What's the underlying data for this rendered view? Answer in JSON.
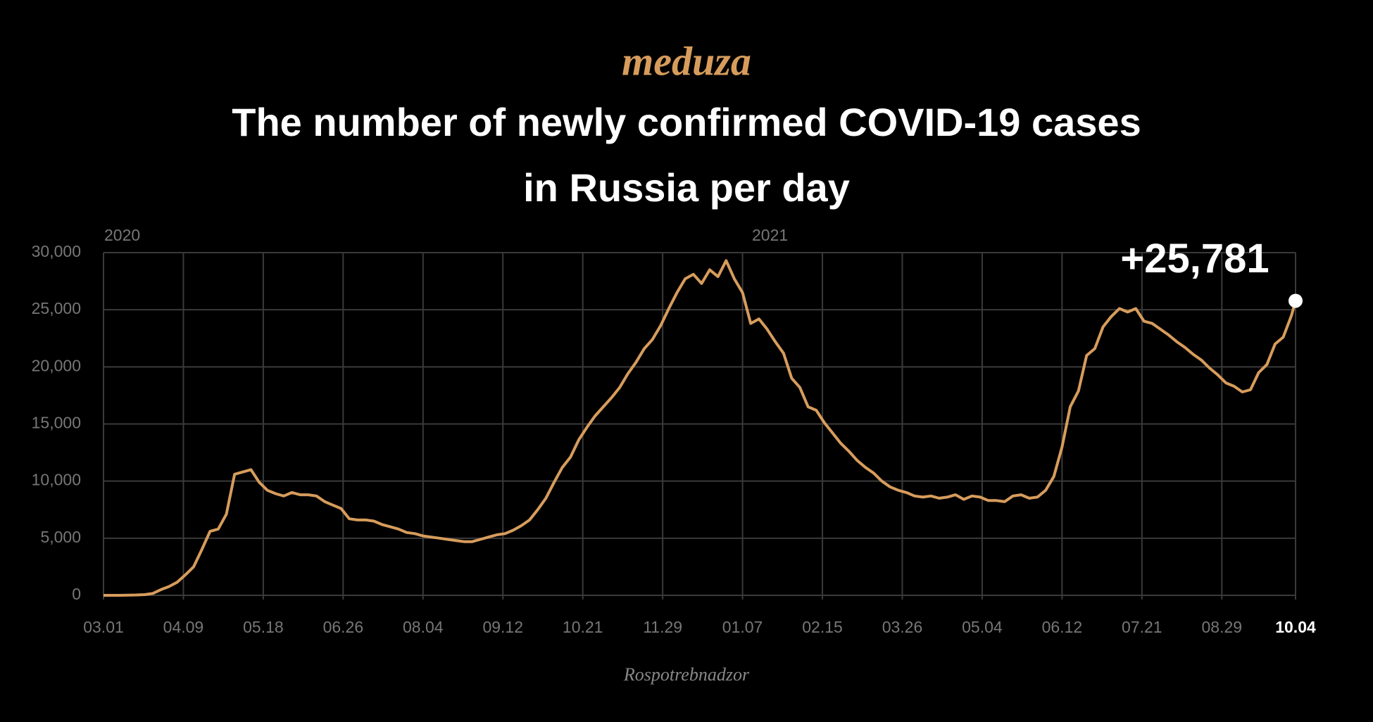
{
  "chart_data": {
    "type": "line",
    "logo": "meduza",
    "title": [
      "The number of newly confirmed COVID-19 cases",
      "in Russia per day"
    ],
    "year_labels": [
      "2020",
      "2021"
    ],
    "source": "Rospotrebnadzor",
    "highlight_label": "+25,781",
    "highlight_last_tick": true,
    "color": "#d79c5c",
    "grid": true,
    "xlim": [
      0,
      582
    ],
    "ylim": [
      0,
      30000
    ],
    "yticks": [
      0,
      {
        "value": 5000,
        "label": "5,000"
      },
      {
        "value": 10000,
        "label": "10,000"
      },
      {
        "value": 15000,
        "label": "15,000"
      },
      {
        "value": 20000,
        "label": "20,000"
      },
      {
        "value": 25000,
        "label": "25,000"
      },
      {
        "value": 30000,
        "label": "30,000"
      }
    ],
    "xticks": [
      {
        "value": 0,
        "label": "03.01"
      },
      {
        "value": 39,
        "label": "04.09"
      },
      {
        "value": 78,
        "label": "05.18"
      },
      {
        "value": 117,
        "label": "06.26"
      },
      {
        "value": 156,
        "label": "08.04"
      },
      {
        "value": 195,
        "label": "09.12"
      },
      {
        "value": 234,
        "label": "10.21"
      },
      {
        "value": 273,
        "label": "11.29"
      },
      {
        "value": 312,
        "label": "01.07"
      },
      {
        "value": 351,
        "label": "02.15"
      },
      {
        "value": 390,
        "label": "03.26"
      },
      {
        "value": 429,
        "label": "05.04"
      },
      {
        "value": 468,
        "label": "06.12"
      },
      {
        "value": 507,
        "label": "07.21"
      },
      {
        "value": 546,
        "label": "08.29"
      },
      {
        "value": 582,
        "label": "10.04"
      }
    ],
    "x": [
      0,
      4,
      8,
      12,
      16,
      20,
      24,
      28,
      32,
      36,
      40,
      44,
      48,
      52,
      56,
      60,
      64,
      68,
      72,
      76,
      80,
      84,
      88,
      92,
      96,
      100,
      104,
      108,
      112,
      116,
      120,
      124,
      128,
      132,
      136,
      140,
      144,
      148,
      152,
      156,
      160,
      164,
      168,
      172,
      176,
      180,
      184,
      188,
      192,
      196,
      200,
      204,
      208,
      212,
      216,
      220,
      224,
      228,
      232,
      236,
      240,
      244,
      248,
      252,
      256,
      260,
      264,
      268,
      272,
      276,
      280,
      284,
      288,
      292,
      296,
      300,
      304,
      308,
      312,
      316,
      320,
      324,
      328,
      332,
      336,
      340,
      344,
      348,
      352,
      356,
      360,
      364,
      368,
      372,
      376,
      380,
      384,
      388,
      392,
      396,
      400,
      404,
      408,
      412,
      416,
      420,
      424,
      428,
      432,
      436,
      440,
      444,
      448,
      452,
      456,
      460,
      464,
      468,
      472,
      476,
      480,
      484,
      488,
      492,
      496,
      500,
      504,
      508,
      512,
      516,
      520,
      524,
      528,
      532,
      536,
      540,
      544,
      548,
      552,
      556,
      560,
      564,
      568,
      572,
      576,
      580,
      582
    ],
    "values": [
      0,
      0,
      3,
      20,
      30,
      60,
      160,
      500,
      770,
      1150,
      1800,
      2500,
      4000,
      5600,
      5800,
      7100,
      10600,
      10800,
      11000,
      9900,
      9200,
      8900,
      8700,
      9000,
      8800,
      8800,
      8700,
      8200,
      7900,
      7600,
      6700,
      6600,
      6600,
      6500,
      6200,
      6000,
      5800,
      5500,
      5400,
      5200,
      5100,
      5000,
      4900,
      4800,
      4700,
      4700,
      4900,
      5100,
      5300,
      5400,
      5700,
      6100,
      6600,
      7500,
      8500,
      9900,
      11200,
      12100,
      13600,
      14700,
      15700,
      16500,
      17300,
      18200,
      19400,
      20400,
      21600,
      22400,
      23600,
      25100,
      26500,
      27700,
      28100,
      27300,
      28500,
      27900,
      29300,
      27700,
      26500,
      23800,
      24200,
      23300,
      22200,
      21200,
      19000,
      18200,
      16500,
      16200,
      15100,
      14200,
      13300,
      12600,
      11800,
      11200,
      10700,
      10000,
      9500,
      9200,
      9000,
      8700,
      8600,
      8700,
      8500,
      8600,
      8800,
      8400,
      8700,
      8600,
      8300,
      8300,
      8200,
      8700,
      8800,
      8500,
      8600,
      9200,
      10400,
      13000,
      16500,
      17900,
      21000,
      21600,
      23500,
      24400,
      25100,
      24800,
      25100,
      24000,
      23800,
      23300,
      22800,
      22200,
      21700,
      21100,
      20600,
      19900,
      19300,
      18600,
      18300,
      17800,
      18000,
      19500,
      20200,
      22000,
      22600,
      24500,
      25781
    ]
  }
}
